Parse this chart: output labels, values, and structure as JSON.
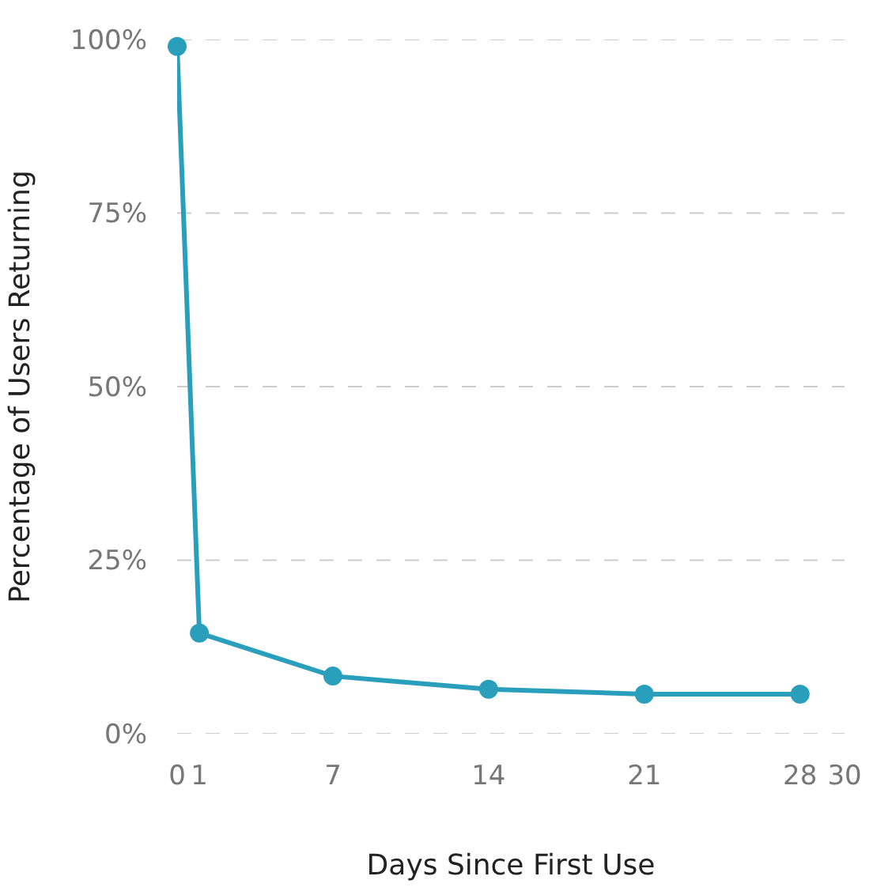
{
  "chart_data": {
    "type": "line",
    "xlabel": "Days Since First Use",
    "ylabel": "Percentage of Users Returning",
    "x": [
      0,
      1,
      7,
      14,
      21,
      28
    ],
    "series": [
      {
        "color": "#2a9fbc",
        "values": [
          99,
          14.5,
          8.3,
          6.4,
          5.7,
          5.7
        ]
      }
    ],
    "xlim": [
      0,
      30
    ],
    "xticks": [
      0,
      1,
      7,
      14,
      21,
      28,
      30
    ],
    "ylim": [
      0,
      100
    ],
    "yticks": [
      {
        "value": 0,
        "label": "0%"
      },
      {
        "value": 25,
        "label": "25%"
      },
      {
        "value": 50,
        "label": "50%"
      },
      {
        "value": 75,
        "label": "75%"
      },
      {
        "value": 100,
        "label": "100%"
      }
    ],
    "grid": "y",
    "marker": "circle",
    "line_style": "solid",
    "legend": false
  }
}
